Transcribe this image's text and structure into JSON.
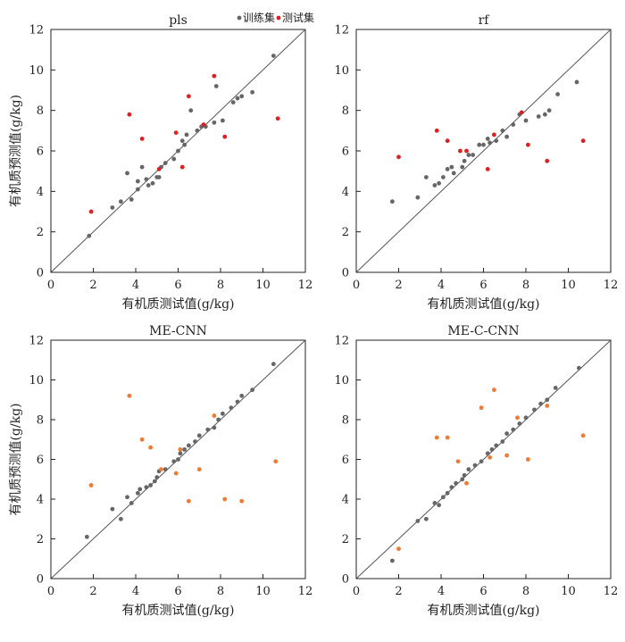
{
  "chart_data": [
    {
      "type": "scatter",
      "title": "pls",
      "xlabel": "有机质测试值(g/kg)",
      "ylabel": "有机质预测值(g/kg)",
      "xlim": [
        0,
        12
      ],
      "ylim": [
        0,
        12
      ],
      "xticks": [
        "0",
        "2",
        "4",
        "6",
        "8",
        "10",
        "12"
      ],
      "yticks": [
        "0",
        "2",
        "4",
        "6",
        "8",
        "10",
        "12"
      ],
      "identity_line": true,
      "legend": {
        "placement": "top-right",
        "entries": [
          "训练集",
          "测试集"
        ]
      },
      "series": [
        {
          "name": "训练集",
          "color": "#666666",
          "points": [
            [
              1.8,
              1.8
            ],
            [
              2.9,
              3.2
            ],
            [
              3.3,
              3.5
            ],
            [
              3.6,
              4.9
            ],
            [
              3.8,
              3.6
            ],
            [
              4.1,
              4.1
            ],
            [
              4.1,
              4.5
            ],
            [
              4.3,
              5.2
            ],
            [
              4.5,
              4.6
            ],
            [
              4.6,
              4.3
            ],
            [
              4.8,
              4.4
            ],
            [
              5.0,
              4.7
            ],
            [
              5.1,
              4.7
            ],
            [
              5.2,
              5.2
            ],
            [
              5.4,
              5.4
            ],
            [
              5.8,
              5.6
            ],
            [
              6.0,
              6.0
            ],
            [
              6.2,
              6.5
            ],
            [
              6.3,
              6.3
            ],
            [
              6.4,
              6.8
            ],
            [
              6.6,
              8.0
            ],
            [
              6.9,
              7.0
            ],
            [
              7.1,
              7.2
            ],
            [
              7.3,
              7.2
            ],
            [
              7.7,
              7.4
            ],
            [
              7.8,
              9.2
            ],
            [
              8.1,
              7.5
            ],
            [
              8.6,
              8.4
            ],
            [
              8.8,
              8.6
            ],
            [
              9.0,
              8.7
            ],
            [
              9.5,
              8.9
            ],
            [
              10.5,
              10.7
            ]
          ]
        },
        {
          "name": "测试集",
          "color": "#e02020",
          "points": [
            [
              1.9,
              3.0
            ],
            [
              3.7,
              7.8
            ],
            [
              4.3,
              6.6
            ],
            [
              5.1,
              5.1
            ],
            [
              5.9,
              6.9
            ],
            [
              6.2,
              5.2
            ],
            [
              6.5,
              8.7
            ],
            [
              7.2,
              7.3
            ],
            [
              7.7,
              9.7
            ],
            [
              8.2,
              6.7
            ],
            [
              10.7,
              7.6
            ]
          ]
        }
      ]
    },
    {
      "type": "scatter",
      "title": "rf",
      "xlabel": "有机质测试值(g/kg)",
      "ylabel": "",
      "xlim": [
        0,
        12
      ],
      "ylim": [
        0,
        12
      ],
      "xticks": [
        "0",
        "2",
        "4",
        "6",
        "8",
        "10",
        "12"
      ],
      "yticks": [
        "0",
        "2",
        "4",
        "6",
        "8",
        "10",
        "12"
      ],
      "identity_line": true,
      "series": [
        {
          "name": "训练集",
          "color": "#666666",
          "points": [
            [
              1.7,
              3.5
            ],
            [
              2.9,
              3.7
            ],
            [
              3.3,
              4.7
            ],
            [
              3.7,
              4.3
            ],
            [
              3.9,
              4.4
            ],
            [
              4.1,
              4.7
            ],
            [
              4.3,
              5.1
            ],
            [
              4.5,
              5.2
            ],
            [
              4.6,
              4.9
            ],
            [
              5.0,
              5.2
            ],
            [
              5.1,
              5.5
            ],
            [
              5.3,
              5.8
            ],
            [
              5.5,
              5.8
            ],
            [
              5.8,
              6.3
            ],
            [
              6.0,
              6.3
            ],
            [
              6.2,
              6.6
            ],
            [
              6.3,
              6.4
            ],
            [
              6.6,
              6.5
            ],
            [
              6.9,
              7.0
            ],
            [
              7.1,
              6.7
            ],
            [
              7.4,
              7.3
            ],
            [
              7.7,
              7.8
            ],
            [
              8.0,
              7.5
            ],
            [
              8.6,
              7.7
            ],
            [
              8.9,
              7.8
            ],
            [
              9.1,
              8.0
            ],
            [
              9.5,
              8.8
            ],
            [
              10.4,
              9.4
            ]
          ]
        },
        {
          "name": "测试集",
          "color": "#e02020",
          "points": [
            [
              2.0,
              5.7
            ],
            [
              3.8,
              7.0
            ],
            [
              4.3,
              6.5
            ],
            [
              4.9,
              6.0
            ],
            [
              5.2,
              6.0
            ],
            [
              6.2,
              5.1
            ],
            [
              6.5,
              6.8
            ],
            [
              7.8,
              7.9
            ],
            [
              8.1,
              6.3
            ],
            [
              9.0,
              5.5
            ],
            [
              10.7,
              6.5
            ]
          ]
        }
      ]
    },
    {
      "type": "scatter",
      "title": "ME-CNN",
      "xlabel": "有机质测试值(g/kg)",
      "ylabel": "有机质预测值(g/kg)",
      "xlim": [
        0,
        12
      ],
      "ylim": [
        0,
        12
      ],
      "xticks": [
        "0",
        "2",
        "4",
        "6",
        "8",
        "10",
        "12"
      ],
      "yticks": [
        "0",
        "2",
        "4",
        "6",
        "8",
        "10",
        "12"
      ],
      "identity_line": true,
      "series": [
        {
          "name": "训练集",
          "color": "#666666",
          "points": [
            [
              1.7,
              2.1
            ],
            [
              2.9,
              3.5
            ],
            [
              3.3,
              3.0
            ],
            [
              3.6,
              4.1
            ],
            [
              3.8,
              3.8
            ],
            [
              4.1,
              4.3
            ],
            [
              4.2,
              4.5
            ],
            [
              4.5,
              4.6
            ],
            [
              4.7,
              4.7
            ],
            [
              4.9,
              4.9
            ],
            [
              5.0,
              5.1
            ],
            [
              5.1,
              5.4
            ],
            [
              5.4,
              5.5
            ],
            [
              5.8,
              5.9
            ],
            [
              6.0,
              6.0
            ],
            [
              6.1,
              6.3
            ],
            [
              6.3,
              6.5
            ],
            [
              6.5,
              6.7
            ],
            [
              6.8,
              6.9
            ],
            [
              7.0,
              7.2
            ],
            [
              7.4,
              7.5
            ],
            [
              7.7,
              7.6
            ],
            [
              7.9,
              8.0
            ],
            [
              8.1,
              8.3
            ],
            [
              8.5,
              8.6
            ],
            [
              8.8,
              8.9
            ],
            [
              9.0,
              9.2
            ],
            [
              9.5,
              9.5
            ],
            [
              10.5,
              10.8
            ]
          ]
        },
        {
          "name": "测试集",
          "color": "#f07a32",
          "points": [
            [
              1.9,
              4.7
            ],
            [
              3.7,
              9.2
            ],
            [
              4.3,
              7.0
            ],
            [
              4.7,
              6.6
            ],
            [
              5.2,
              5.5
            ],
            [
              5.9,
              5.3
            ],
            [
              6.1,
              6.5
            ],
            [
              6.5,
              3.9
            ],
            [
              7.0,
              5.5
            ],
            [
              7.7,
              8.2
            ],
            [
              8.2,
              4.0
            ],
            [
              9.0,
              3.9
            ],
            [
              10.6,
              5.9
            ]
          ]
        }
      ]
    },
    {
      "type": "scatter",
      "title": "ME-C-CNN",
      "xlabel": "有机质测试值(g/kg)",
      "ylabel": "",
      "xlim": [
        0,
        12
      ],
      "ylim": [
        0,
        12
      ],
      "xticks": [
        "0",
        "2",
        "4",
        "6",
        "8",
        "10",
        "12"
      ],
      "yticks": [
        "0",
        "2",
        "4",
        "6",
        "8",
        "10",
        "12"
      ],
      "identity_line": true,
      "series": [
        {
          "name": "训练集",
          "color": "#666666",
          "points": [
            [
              1.7,
              0.9
            ],
            [
              2.9,
              2.9
            ],
            [
              3.3,
              3.0
            ],
            [
              3.7,
              3.8
            ],
            [
              3.9,
              3.7
            ],
            [
              4.1,
              4.1
            ],
            [
              4.3,
              4.3
            ],
            [
              4.5,
              4.6
            ],
            [
              4.7,
              4.8
            ],
            [
              5.0,
              5.0
            ],
            [
              5.1,
              5.2
            ],
            [
              5.3,
              5.5
            ],
            [
              5.6,
              5.7
            ],
            [
              5.9,
              5.9
            ],
            [
              6.2,
              6.3
            ],
            [
              6.4,
              6.5
            ],
            [
              6.6,
              6.7
            ],
            [
              6.9,
              6.9
            ],
            [
              7.1,
              7.3
            ],
            [
              7.4,
              7.5
            ],
            [
              7.7,
              7.8
            ],
            [
              8.0,
              8.1
            ],
            [
              8.4,
              8.5
            ],
            [
              8.7,
              8.8
            ],
            [
              9.0,
              9.0
            ],
            [
              9.4,
              9.6
            ],
            [
              10.5,
              10.6
            ]
          ]
        },
        {
          "name": "测试集",
          "color": "#f07a32",
          "points": [
            [
              2.0,
              1.5
            ],
            [
              3.8,
              7.1
            ],
            [
              4.3,
              7.1
            ],
            [
              4.8,
              5.9
            ],
            [
              5.2,
              4.8
            ],
            [
              5.9,
              8.6
            ],
            [
              6.3,
              6.1
            ],
            [
              6.5,
              9.5
            ],
            [
              7.1,
              6.2
            ],
            [
              7.6,
              8.1
            ],
            [
              8.1,
              6.0
            ],
            [
              9.0,
              8.7
            ],
            [
              10.7,
              7.2
            ]
          ]
        }
      ]
    }
  ]
}
